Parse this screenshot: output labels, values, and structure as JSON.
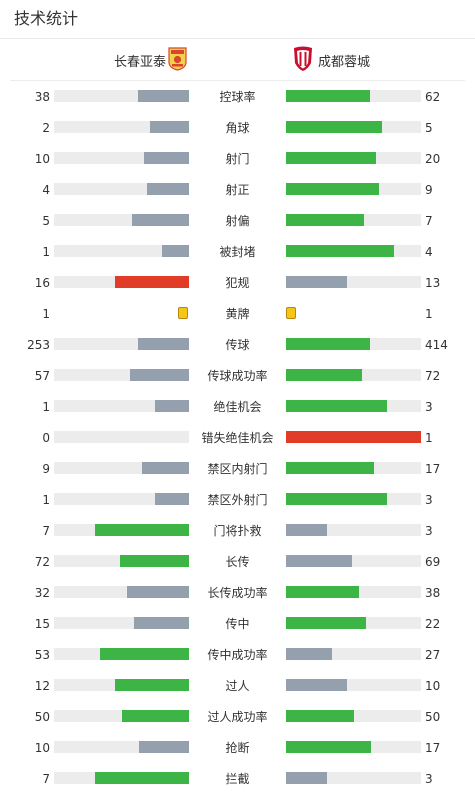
{
  "header": {
    "title": "技术统计"
  },
  "teams": {
    "home": {
      "name": "长春亚泰"
    },
    "away": {
      "name": "成都蓉城"
    }
  },
  "colors": {
    "green": "#3cb446",
    "gray": "#95a0ae",
    "red": "#e03c28",
    "track": "#ececec",
    "yellow_card": "#f5c518"
  },
  "stats": [
    {
      "label": "控球率",
      "home": "38",
      "away": "62",
      "home_fraction": 0.38,
      "away_fraction": 0.62,
      "home_color": "gray",
      "away_color": "green"
    },
    {
      "label": "角球",
      "home": "2",
      "away": "5",
      "home_fraction": 0.29,
      "away_fraction": 0.71,
      "home_color": "gray",
      "away_color": "green"
    },
    {
      "label": "射门",
      "home": "10",
      "away": "20",
      "home_fraction": 0.33,
      "away_fraction": 0.67,
      "home_color": "gray",
      "away_color": "green"
    },
    {
      "label": "射正",
      "home": "4",
      "away": "9",
      "home_fraction": 0.31,
      "away_fraction": 0.69,
      "home_color": "gray",
      "away_color": "green"
    },
    {
      "label": "射偏",
      "home": "5",
      "away": "7",
      "home_fraction": 0.42,
      "away_fraction": 0.58,
      "home_color": "gray",
      "away_color": "green"
    },
    {
      "label": "被封堵",
      "home": "1",
      "away": "4",
      "home_fraction": 0.2,
      "away_fraction": 0.8,
      "home_color": "gray",
      "away_color": "green"
    },
    {
      "label": "犯规",
      "home": "16",
      "away": "13",
      "home_fraction": 0.55,
      "away_fraction": 0.45,
      "home_color": "red",
      "away_color": "gray"
    },
    {
      "label": "黄牌",
      "home": "1",
      "away": "1",
      "card": true
    },
    {
      "label": "传球",
      "home": "253",
      "away": "414",
      "home_fraction": 0.38,
      "away_fraction": 0.62,
      "home_color": "gray",
      "away_color": "green"
    },
    {
      "label": "传球成功率",
      "home": "57",
      "away": "72",
      "home_fraction": 0.44,
      "away_fraction": 0.56,
      "home_color": "gray",
      "away_color": "green"
    },
    {
      "label": "绝佳机会",
      "home": "1",
      "away": "3",
      "home_fraction": 0.25,
      "away_fraction": 0.75,
      "home_color": "gray",
      "away_color": "green"
    },
    {
      "label": "错失绝佳机会",
      "home": "0",
      "away": "1",
      "home_fraction": 0.0,
      "away_fraction": 1.0,
      "home_color": "gray",
      "away_color": "red"
    },
    {
      "label": "禁区内射门",
      "home": "9",
      "away": "17",
      "home_fraction": 0.35,
      "away_fraction": 0.65,
      "home_color": "gray",
      "away_color": "green"
    },
    {
      "label": "禁区外射门",
      "home": "1",
      "away": "3",
      "home_fraction": 0.25,
      "away_fraction": 0.75,
      "home_color": "gray",
      "away_color": "green"
    },
    {
      "label": "门将扑救",
      "home": "7",
      "away": "3",
      "home_fraction": 0.7,
      "away_fraction": 0.3,
      "home_color": "green",
      "away_color": "gray"
    },
    {
      "label": "长传",
      "home": "72",
      "away": "69",
      "home_fraction": 0.51,
      "away_fraction": 0.49,
      "home_color": "green",
      "away_color": "gray"
    },
    {
      "label": "长传成功率",
      "home": "32",
      "away": "38",
      "home_fraction": 0.46,
      "away_fraction": 0.54,
      "home_color": "gray",
      "away_color": "green"
    },
    {
      "label": "传中",
      "home": "15",
      "away": "22",
      "home_fraction": 0.41,
      "away_fraction": 0.59,
      "home_color": "gray",
      "away_color": "green"
    },
    {
      "label": "传中成功率",
      "home": "53",
      "away": "27",
      "home_fraction": 0.66,
      "away_fraction": 0.34,
      "home_color": "green",
      "away_color": "gray"
    },
    {
      "label": "过人",
      "home": "12",
      "away": "10",
      "home_fraction": 0.55,
      "away_fraction": 0.45,
      "home_color": "green",
      "away_color": "gray"
    },
    {
      "label": "过人成功率",
      "home": "50",
      "away": "50",
      "home_fraction": 0.5,
      "away_fraction": 0.5,
      "home_color": "green",
      "away_color": "green"
    },
    {
      "label": "抢断",
      "home": "10",
      "away": "17",
      "home_fraction": 0.37,
      "away_fraction": 0.63,
      "home_color": "gray",
      "away_color": "green"
    },
    {
      "label": "拦截",
      "home": "7",
      "away": "3",
      "home_fraction": 0.7,
      "away_fraction": 0.3,
      "home_color": "green",
      "away_color": "gray"
    }
  ]
}
